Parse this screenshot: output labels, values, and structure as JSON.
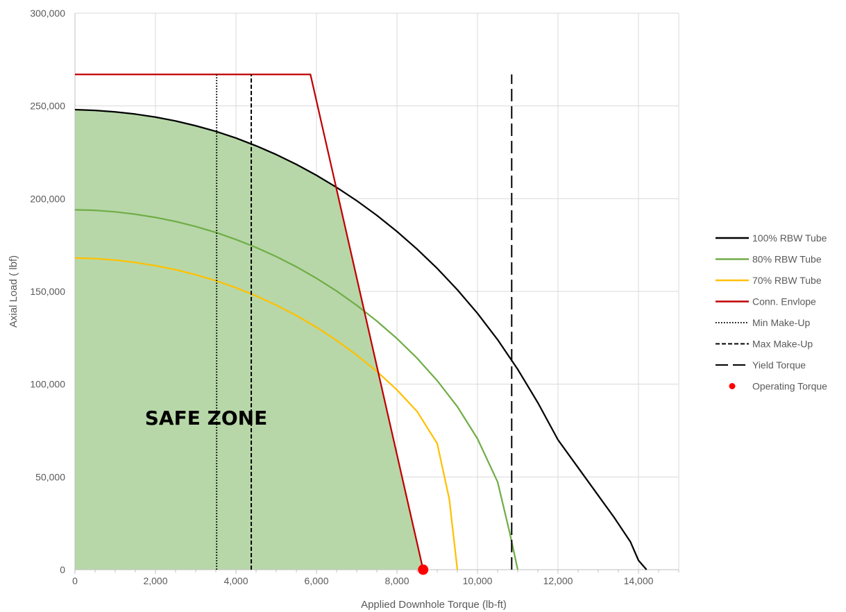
{
  "chart_data": {
    "type": "line",
    "title": "",
    "xlabel": "Applied Downhole Torque (lb-ft)",
    "ylabel": "Axial Load ( lbf)",
    "xlim": [
      0,
      15000
    ],
    "ylim": [
      0,
      300000
    ],
    "x_ticks": [
      0,
      2000,
      4000,
      6000,
      8000,
      10000,
      12000,
      14000
    ],
    "x_tick_labels": [
      "0",
      "2,000",
      "4,000",
      "6,000",
      "8,000",
      "10,000",
      "12,000",
      "14,000"
    ],
    "y_ticks": [
      0,
      50000,
      100000,
      150000,
      200000,
      250000,
      300000
    ],
    "y_tick_labels": [
      "0",
      "50,000",
      "100,000",
      "150,000",
      "200,000",
      "250,000",
      "300,000"
    ],
    "grid": true,
    "legend_position": "right",
    "annotation": "SAFE ZONE",
    "safe_zone_color": "#b7d7a8",
    "series": [
      {
        "name": "100% RBW Tube",
        "color": "#000000",
        "style": "solid",
        "x": [
          0,
          500,
          1000,
          1500,
          2000,
          2500,
          3000,
          3500,
          4000,
          4500,
          5000,
          5500,
          6000,
          6500,
          7000,
          7500,
          8000,
          8500,
          9000,
          9500,
          10000,
          10500,
          11000,
          11500,
          12000,
          12500,
          13000,
          13400,
          13800,
          14000,
          14200
        ],
        "y": [
          248000,
          247600,
          246800,
          245600,
          244000,
          241900,
          239300,
          236300,
          232700,
          228500,
          223800,
          218500,
          212600,
          206100,
          198900,
          191000,
          182300,
          172800,
          162400,
          150900,
          138200,
          124000,
          108000,
          90000,
          70000,
          55000,
          40000,
          28000,
          15000,
          5000,
          0
        ]
      },
      {
        "name": "80% RBW Tube",
        "color": "#70ad47",
        "style": "solid",
        "x": [
          0,
          500,
          1000,
          1500,
          2000,
          2500,
          3000,
          3500,
          4000,
          4500,
          5000,
          5500,
          6000,
          6500,
          7000,
          7500,
          8000,
          8500,
          9000,
          9500,
          10000,
          10500,
          10800,
          11000
        ],
        "y": [
          194000,
          193700,
          192900,
          191600,
          189900,
          187700,
          185000,
          181800,
          178000,
          173700,
          168800,
          163300,
          157100,
          150200,
          142500,
          134000,
          124600,
          114000,
          101900,
          87900,
          70600,
          47300,
          20000,
          0
        ]
      },
      {
        "name": "70% RBW Tube",
        "color": "#ffc000",
        "style": "solid",
        "x": [
          0,
          500,
          1000,
          1500,
          2000,
          2500,
          3000,
          3500,
          4000,
          4500,
          5000,
          5500,
          6000,
          6500,
          7000,
          7500,
          8000,
          8500,
          9000,
          9300,
          9500
        ],
        "y": [
          168000,
          167700,
          166900,
          165600,
          163900,
          161700,
          159000,
          155800,
          152000,
          147600,
          142600,
          137000,
          130700,
          123600,
          115700,
          106900,
          96900,
          85300,
          68000,
          38000,
          0
        ]
      },
      {
        "name": "Conn. Envlope",
        "color": "#c00000",
        "style": "solid",
        "x": [
          0,
          5850,
          8650
        ],
        "y": [
          267000,
          267000,
          0
        ]
      },
      {
        "name": "Min Make-Up",
        "color": "#000000",
        "style": "dotted",
        "x": [
          3520,
          3520
        ],
        "y": [
          0,
          267000
        ]
      },
      {
        "name": "Max Make-Up",
        "color": "#000000",
        "style": "dashed",
        "x": [
          4380,
          4380
        ],
        "y": [
          0,
          267000
        ]
      },
      {
        "name": "Yield Torque",
        "color": "#000000",
        "style": "longdash",
        "x": [
          10850,
          10850
        ],
        "y": [
          0,
          267000
        ]
      },
      {
        "name": "Operating Torque",
        "color": "#ff0000",
        "style": "marker",
        "x": [
          8650
        ],
        "y": [
          0
        ]
      }
    ]
  }
}
